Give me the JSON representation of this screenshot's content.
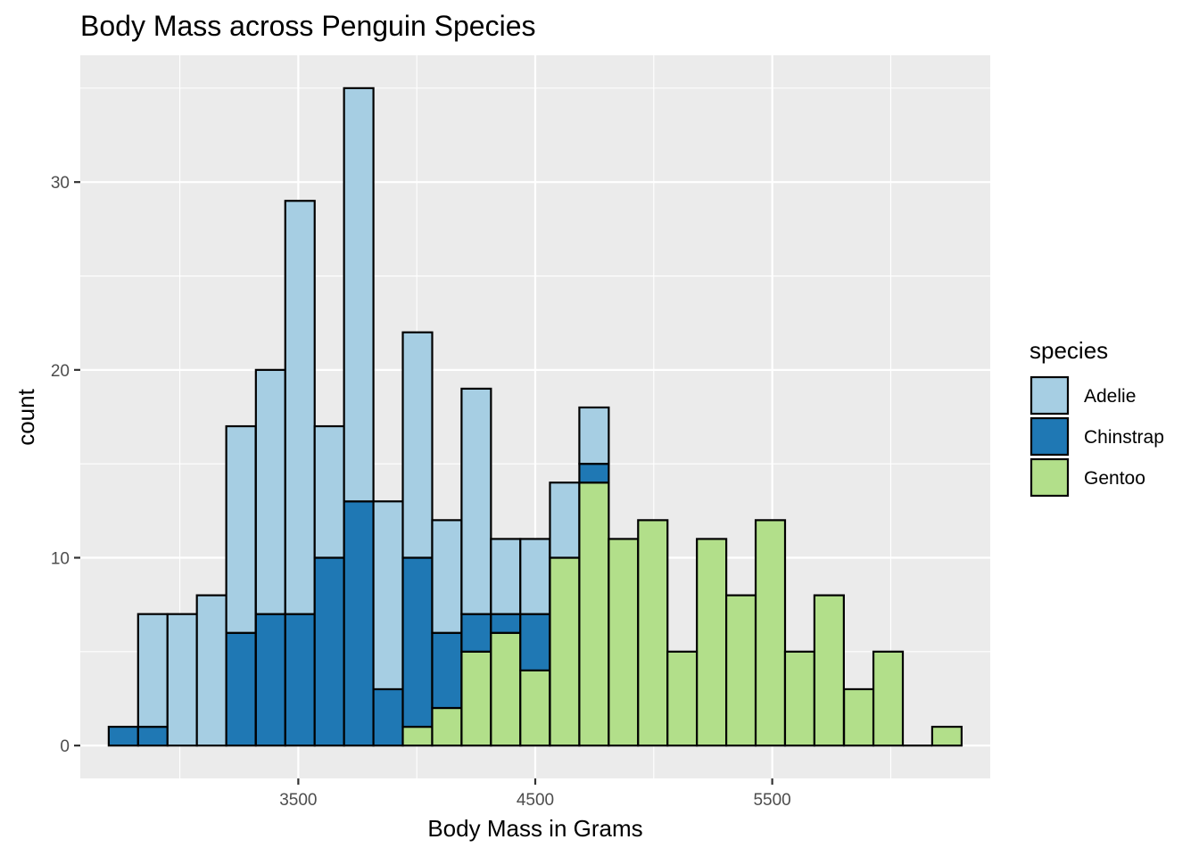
{
  "chart_data": {
    "type": "bar",
    "stacked": true,
    "title": "Body Mass across Penguin Species",
    "xlabel": "Body Mass in Grams",
    "ylabel": "count",
    "xlim": [
      2580,
      6420
    ],
    "ylim": [
      -1.75,
      36.75
    ],
    "x_ticks": [
      3500,
      4500,
      5500
    ],
    "y_ticks": [
      0,
      10,
      20,
      30
    ],
    "bin_width": 124.1,
    "bin_starts": [
      2700,
      2824,
      2948,
      3072,
      3196,
      3321,
      3445,
      3569,
      3693,
      3817,
      3941,
      4065,
      4189,
      4313,
      4437,
      4562,
      4686,
      4810,
      4934,
      5058,
      5182,
      5306,
      5430,
      5554,
      5678,
      5803,
      5927,
      6051,
      6175
    ],
    "legend": {
      "title": "species",
      "position": "right"
    },
    "series": [
      {
        "name": "Gentoo",
        "color": "#b2df8a",
        "values": [
          0,
          0,
          0,
          0,
          0,
          0,
          0,
          0,
          0,
          0,
          1,
          2,
          5,
          6,
          4,
          10,
          14,
          11,
          12,
          5,
          11,
          8,
          12,
          5,
          8,
          3,
          5,
          0,
          1
        ]
      },
      {
        "name": "Chinstrap",
        "color": "#1f78b4",
        "values": [
          1,
          1,
          0,
          0,
          6,
          7,
          7,
          10,
          13,
          3,
          9,
          4,
          2,
          1,
          3,
          0,
          1,
          0,
          0,
          0,
          0,
          0,
          0,
          0,
          0,
          0,
          0,
          0,
          0
        ]
      },
      {
        "name": "Adelie",
        "color": "#a6cee3",
        "values": [
          0,
          6,
          7,
          8,
          11,
          13,
          22,
          7,
          22,
          10,
          12,
          6,
          12,
          4,
          4,
          4,
          3,
          0,
          0,
          0,
          0,
          0,
          0,
          0,
          0,
          0,
          0,
          0,
          0
        ]
      }
    ],
    "legend_order": [
      "Adelie",
      "Chinstrap",
      "Gentoo"
    ],
    "grid": true
  }
}
